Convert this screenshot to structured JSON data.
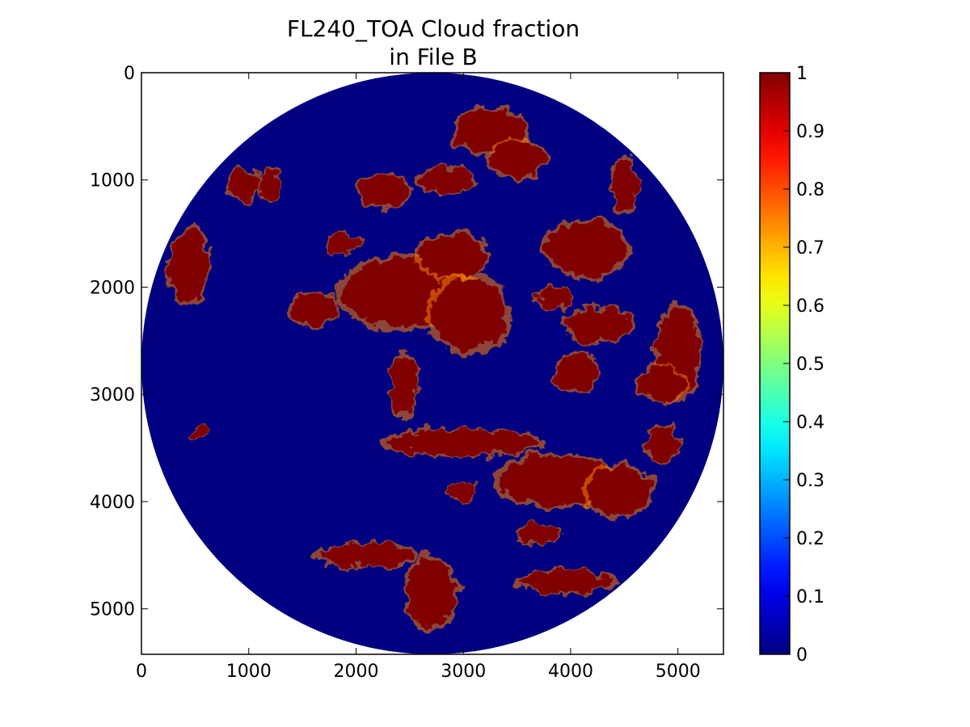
{
  "chart_data": {
    "type": "heatmap",
    "title_line1": "FL240_TOA Cloud fraction",
    "title_line2": "in File B",
    "xlabel": "",
    "ylabel": "",
    "xlim": [
      0,
      5424
    ],
    "ylim": [
      5424,
      0
    ],
    "x_ticks": [
      0,
      1000,
      2000,
      3000,
      4000,
      5000
    ],
    "x_tick_labels": [
      "0",
      "1000",
      "2000",
      "3000",
      "4000",
      "5000"
    ],
    "y_ticks": [
      0,
      1000,
      2000,
      3000,
      4000,
      5000
    ],
    "y_tick_labels": [
      "0",
      "1000",
      "2000",
      "3000",
      "4000",
      "5000"
    ],
    "colorbar": {
      "colormap": "jet",
      "vmin": 0,
      "vmax": 1,
      "ticks": [
        0,
        0.1,
        0.2,
        0.3,
        0.4,
        0.5,
        0.6,
        0.7,
        0.8,
        0.9,
        1
      ],
      "tick_labels": [
        "0",
        "0.1",
        "0.2",
        "0.3",
        "0.4",
        "0.5",
        "0.6",
        "0.7",
        "0.8",
        "0.9",
        "1"
      ]
    },
    "disk": {
      "center": [
        2712,
        2712
      ],
      "radius": 2712,
      "background_value": 0
    },
    "cloud_regions": [
      {
        "x": 2500,
        "y": 2050,
        "rx": 620,
        "ry": 320,
        "value": 1
      },
      {
        "x": 3050,
        "y": 2250,
        "rx": 360,
        "ry": 330,
        "value": 1
      },
      {
        "x": 3000,
        "y": 3450,
        "rx": 700,
        "ry": 120,
        "value": 1
      },
      {
        "x": 3850,
        "y": 3800,
        "rx": 520,
        "ry": 230,
        "value": 1
      },
      {
        "x": 4450,
        "y": 3900,
        "rx": 300,
        "ry": 230,
        "value": 1
      },
      {
        "x": 3250,
        "y": 550,
        "rx": 330,
        "ry": 200,
        "value": 1
      },
      {
        "x": 3500,
        "y": 800,
        "rx": 260,
        "ry": 170,
        "value": 1
      },
      {
        "x": 2250,
        "y": 1100,
        "rx": 250,
        "ry": 150,
        "value": 1
      },
      {
        "x": 2850,
        "y": 1000,
        "rx": 260,
        "ry": 120,
        "value": 1
      },
      {
        "x": 2900,
        "y": 1700,
        "rx": 320,
        "ry": 200,
        "value": 1
      },
      {
        "x": 4150,
        "y": 1650,
        "rx": 360,
        "ry": 250,
        "value": 1
      },
      {
        "x": 4250,
        "y": 2350,
        "rx": 320,
        "ry": 150,
        "value": 1
      },
      {
        "x": 5000,
        "y": 2600,
        "rx": 200,
        "ry": 420,
        "value": 1
      },
      {
        "x": 4850,
        "y": 2900,
        "rx": 230,
        "ry": 150,
        "value": 1
      },
      {
        "x": 4050,
        "y": 2800,
        "rx": 200,
        "ry": 180,
        "value": 1
      },
      {
        "x": 450,
        "y": 1800,
        "rx": 180,
        "ry": 330,
        "value": 1
      },
      {
        "x": 950,
        "y": 1050,
        "rx": 140,
        "ry": 140,
        "value": 1
      },
      {
        "x": 1200,
        "y": 1050,
        "rx": 90,
        "ry": 140,
        "value": 1
      },
      {
        "x": 1600,
        "y": 2200,
        "rx": 220,
        "ry": 150,
        "value": 1
      },
      {
        "x": 2100,
        "y": 4500,
        "rx": 430,
        "ry": 110,
        "value": 1
      },
      {
        "x": 2700,
        "y": 4850,
        "rx": 220,
        "ry": 320,
        "value": 1
      },
      {
        "x": 3950,
        "y": 4750,
        "rx": 420,
        "ry": 100,
        "value": 1
      },
      {
        "x": 4500,
        "y": 1050,
        "rx": 120,
        "ry": 250,
        "value": 1
      },
      {
        "x": 3850,
        "y": 2100,
        "rx": 160,
        "ry": 120,
        "value": 1
      },
      {
        "x": 2450,
        "y": 2900,
        "rx": 120,
        "ry": 280,
        "value": 1
      },
      {
        "x": 1900,
        "y": 1600,
        "rx": 160,
        "ry": 90,
        "value": 1
      },
      {
        "x": 4850,
        "y": 3450,
        "rx": 150,
        "ry": 150,
        "value": 1
      },
      {
        "x": 550,
        "y": 3350,
        "rx": 70,
        "ry": 70,
        "value": 1
      },
      {
        "x": 3000,
        "y": 3900,
        "rx": 120,
        "ry": 80,
        "value": 1
      },
      {
        "x": 3700,
        "y": 4300,
        "rx": 200,
        "ry": 80,
        "value": 1
      }
    ]
  }
}
